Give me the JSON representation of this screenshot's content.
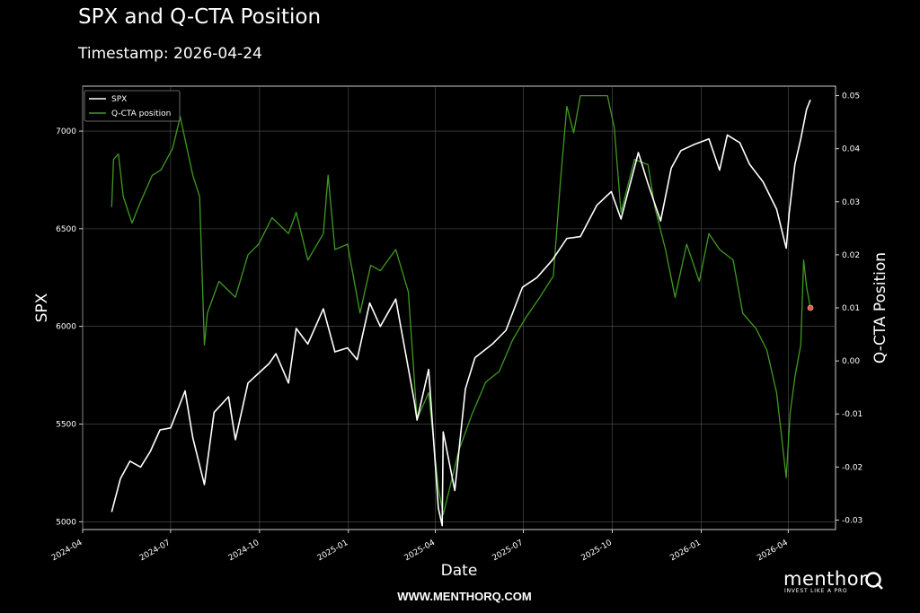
{
  "header": {
    "title": "SPX and Q-CTA Position",
    "subtitle": "Timestamp: 2026-04-24"
  },
  "footer": {
    "url": "WWW.MENTHORQ.COM",
    "brand": "menthor",
    "brand_tagline": "INVEST LIKE A PRO"
  },
  "colors": {
    "background": "#000000",
    "spx_line": "#ffffff",
    "cta_line": "#3f9a21",
    "last_marker": "#e05a47",
    "grid": "#555555"
  },
  "chart_data": {
    "type": "line",
    "xlabel": "Date",
    "ylabel": "SPX",
    "ylabel_right": "Q-CTA Position",
    "legend_position": "top-left",
    "grid": true,
    "xlim": [
      "2024-04-01",
      "2026-05-20"
    ],
    "ylim": [
      4960,
      7230
    ],
    "ylim_right": [
      -0.0318,
      0.0518
    ],
    "x_ticks": [
      "2024-04",
      "2024-07",
      "2024-10",
      "2025-01",
      "2025-04",
      "2025-07",
      "2025-10",
      "2026-01",
      "2026-04"
    ],
    "y_ticks": [
      5000,
      5500,
      6000,
      6500,
      7000
    ],
    "y_ticks_right": [
      "-0.03",
      "-0.02",
      "-0.01",
      "0.00",
      "0.01",
      "0.02",
      "0.03",
      "0.04",
      "0.05"
    ],
    "series": [
      {
        "name": "SPX",
        "axis": "left",
        "points": [
          [
            "2024-05-01",
            5050
          ],
          [
            "2024-05-10",
            5220
          ],
          [
            "2024-05-20",
            5310
          ],
          [
            "2024-05-31",
            5280
          ],
          [
            "2024-06-10",
            5360
          ],
          [
            "2024-06-20",
            5470
          ],
          [
            "2024-07-01",
            5480
          ],
          [
            "2024-07-16",
            5670
          ],
          [
            "2024-07-24",
            5430
          ],
          [
            "2024-08-05",
            5190
          ],
          [
            "2024-08-15",
            5560
          ],
          [
            "2024-08-30",
            5640
          ],
          [
            "2024-09-06",
            5420
          ],
          [
            "2024-09-19",
            5710
          ],
          [
            "2024-09-30",
            5760
          ],
          [
            "2024-10-11",
            5810
          ],
          [
            "2024-10-18",
            5860
          ],
          [
            "2024-10-31",
            5710
          ],
          [
            "2024-11-08",
            5990
          ],
          [
            "2024-11-20",
            5910
          ],
          [
            "2024-12-06",
            6090
          ],
          [
            "2024-12-18",
            5870
          ],
          [
            "2024-12-31",
            5890
          ],
          [
            "2025-01-10",
            5830
          ],
          [
            "2025-01-23",
            6120
          ],
          [
            "2025-02-03",
            6000
          ],
          [
            "2025-02-19",
            6140
          ],
          [
            "2025-03-10",
            5620
          ],
          [
            "2025-03-13",
            5520
          ],
          [
            "2025-03-25",
            5780
          ],
          [
            "2025-04-04",
            5070
          ],
          [
            "2025-04-08",
            4980
          ],
          [
            "2025-04-09",
            5460
          ],
          [
            "2025-04-21",
            5160
          ],
          [
            "2025-05-02",
            5680
          ],
          [
            "2025-05-12",
            5840
          ],
          [
            "2025-05-30",
            5910
          ],
          [
            "2025-06-13",
            5980
          ],
          [
            "2025-06-30",
            6200
          ],
          [
            "2025-07-15",
            6250
          ],
          [
            "2025-07-31",
            6340
          ],
          [
            "2025-08-15",
            6450
          ],
          [
            "2025-08-29",
            6460
          ],
          [
            "2025-09-15",
            6620
          ],
          [
            "2025-09-30",
            6690
          ],
          [
            "2025-10-10",
            6550
          ],
          [
            "2025-10-28",
            6890
          ],
          [
            "2025-11-07",
            6730
          ],
          [
            "2025-11-20",
            6540
          ],
          [
            "2025-12-01",
            6810
          ],
          [
            "2025-12-11",
            6900
          ],
          [
            "2025-12-24",
            6930
          ],
          [
            "2026-01-09",
            6960
          ],
          [
            "2026-01-20",
            6800
          ],
          [
            "2026-01-28",
            6980
          ],
          [
            "2026-02-10",
            6940
          ],
          [
            "2026-02-20",
            6830
          ],
          [
            "2026-03-06",
            6740
          ],
          [
            "2026-03-20",
            6600
          ],
          [
            "2026-03-30",
            6400
          ],
          [
            "2026-04-02",
            6580
          ],
          [
            "2026-04-08",
            6830
          ],
          [
            "2026-04-14",
            6960
          ],
          [
            "2026-04-20",
            7110
          ],
          [
            "2026-04-24",
            7160
          ]
        ]
      },
      {
        "name": "Q-CTA position",
        "axis": "right",
        "points": [
          [
            "2024-05-01",
            0.029
          ],
          [
            "2024-05-03",
            0.038
          ],
          [
            "2024-05-08",
            0.039
          ],
          [
            "2024-05-13",
            0.031
          ],
          [
            "2024-05-22",
            0.026
          ],
          [
            "2024-05-31",
            0.03
          ],
          [
            "2024-06-12",
            0.035
          ],
          [
            "2024-06-21",
            0.036
          ],
          [
            "2024-07-03",
            0.04
          ],
          [
            "2024-07-11",
            0.046
          ],
          [
            "2024-07-24",
            0.035
          ],
          [
            "2024-07-31",
            0.031
          ],
          [
            "2024-08-05",
            0.003
          ],
          [
            "2024-08-08",
            0.009
          ],
          [
            "2024-08-20",
            0.015
          ],
          [
            "2024-09-06",
            0.012
          ],
          [
            "2024-09-19",
            0.02
          ],
          [
            "2024-09-30",
            0.022
          ],
          [
            "2024-10-14",
            0.027
          ],
          [
            "2024-10-31",
            0.024
          ],
          [
            "2024-11-08",
            0.028
          ],
          [
            "2024-11-20",
            0.019
          ],
          [
            "2024-12-06",
            0.024
          ],
          [
            "2024-12-11",
            0.035
          ],
          [
            "2024-12-18",
            0.021
          ],
          [
            "2024-12-31",
            0.022
          ],
          [
            "2025-01-13",
            0.009
          ],
          [
            "2025-01-24",
            0.018
          ],
          [
            "2025-02-03",
            0.017
          ],
          [
            "2025-02-19",
            0.021
          ],
          [
            "2025-03-04",
            0.013
          ],
          [
            "2025-03-13",
            -0.011
          ],
          [
            "2025-03-25",
            -0.006
          ],
          [
            "2025-04-04",
            -0.024
          ],
          [
            "2025-04-09",
            -0.029
          ],
          [
            "2025-04-25",
            -0.017
          ],
          [
            "2025-05-09",
            -0.01
          ],
          [
            "2025-05-23",
            -0.004
          ],
          [
            "2025-06-06",
            -0.002
          ],
          [
            "2025-06-20",
            0.004
          ],
          [
            "2025-07-03",
            0.008
          ],
          [
            "2025-07-18",
            0.012
          ],
          [
            "2025-08-01",
            0.016
          ],
          [
            "2025-08-08",
            0.033
          ],
          [
            "2025-08-15",
            0.048
          ],
          [
            "2025-08-22",
            0.043
          ],
          [
            "2025-08-29",
            0.05
          ],
          [
            "2025-09-26",
            0.05
          ],
          [
            "2025-10-03",
            0.044
          ],
          [
            "2025-10-10",
            0.028
          ],
          [
            "2025-10-24",
            0.038
          ],
          [
            "2025-11-07",
            0.037
          ],
          [
            "2025-11-14",
            0.029
          ],
          [
            "2025-11-25",
            0.021
          ],
          [
            "2025-12-05",
            0.012
          ],
          [
            "2025-12-17",
            0.022
          ],
          [
            "2025-12-30",
            0.015
          ],
          [
            "2026-01-09",
            0.024
          ],
          [
            "2026-01-20",
            0.021
          ],
          [
            "2026-02-03",
            0.019
          ],
          [
            "2026-02-13",
            0.009
          ],
          [
            "2026-02-27",
            0.006
          ],
          [
            "2026-03-10",
            0.002
          ],
          [
            "2026-03-20",
            -0.006
          ],
          [
            "2026-03-30",
            -0.022
          ],
          [
            "2026-04-03",
            -0.01
          ],
          [
            "2026-04-08",
            -0.003
          ],
          [
            "2026-04-14",
            0.003
          ],
          [
            "2026-04-17",
            0.019
          ],
          [
            "2026-04-20",
            0.014
          ],
          [
            "2026-04-24",
            0.01
          ]
        ],
        "last_point": [
          "2026-04-24",
          0.01
        ]
      }
    ]
  }
}
